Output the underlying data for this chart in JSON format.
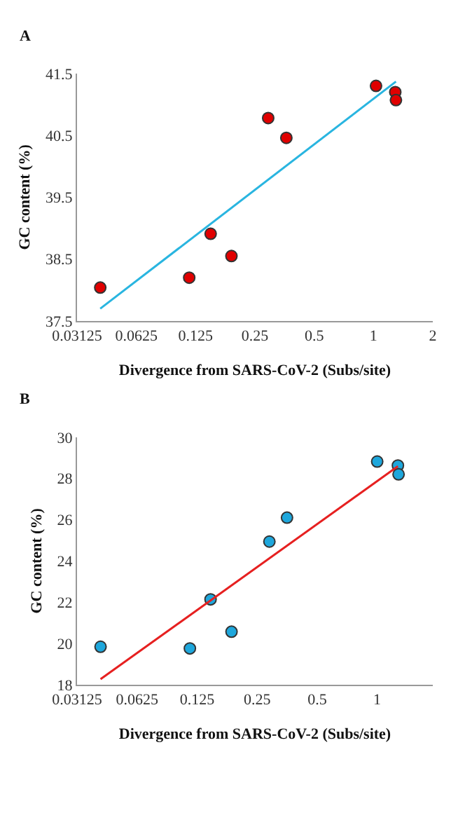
{
  "chart_data": [
    {
      "type": "scatter",
      "title": "A",
      "xlabel": "Divergence from SARS-CoV-2 (Subs/site)",
      "ylabel": "GC content (%)",
      "log": "x",
      "xlim": [
        0.03125,
        2
      ],
      "xticks": [
        0.03125,
        0.0625,
        0.125,
        0.25,
        0.5,
        1,
        2
      ],
      "ylim": [
        37.5,
        41.5
      ],
      "yticks": [
        37.5,
        38.5,
        39.5,
        40.5,
        41.5
      ],
      "marker": "circle",
      "series": [
        {
          "color": "#e00000",
          "x": [
            0.041,
            0.116,
            0.149,
            0.19,
            0.292,
            0.361,
            1.03,
            1.29,
            1.3
          ],
          "values": [
            38.04,
            38.2,
            38.91,
            38.55,
            40.78,
            40.46,
            41.3,
            41.2,
            41.07
          ]
        },
        {
          "type": "line",
          "color": "#29b5e0",
          "marker": "none",
          "line_style": "solid",
          "x": [
            0.041,
            1.3
          ],
          "values": [
            37.7,
            41.37
          ]
        }
      ]
    },
    {
      "type": "scatter",
      "title": "B",
      "xlabel": "Divergence from SARS-CoV-2 (Subs/site)",
      "ylabel": "GC content (%)",
      "log": "x",
      "xlim": [
        0.03125,
        1.9
      ],
      "xticks": [
        0.03125,
        0.0625,
        0.125,
        0.25,
        0.5,
        1
      ],
      "ylim": [
        18,
        30
      ],
      "yticks": [
        18,
        20,
        22,
        24,
        26,
        28,
        30
      ],
      "marker": "circle",
      "series": [
        {
          "color": "#1ea7dc",
          "x": [
            0.041,
            0.115,
            0.146,
            0.186,
            0.288,
            0.353,
            1.0,
            1.27,
            1.28
          ],
          "values": [
            19.84,
            19.76,
            22.14,
            20.57,
            24.94,
            26.1,
            28.82,
            28.63,
            28.2
          ]
        },
        {
          "type": "line",
          "color": "#e62020",
          "marker": "none",
          "line_style": "solid",
          "x": [
            0.041,
            1.27
          ],
          "values": [
            18.27,
            28.59
          ]
        }
      ]
    }
  ]
}
